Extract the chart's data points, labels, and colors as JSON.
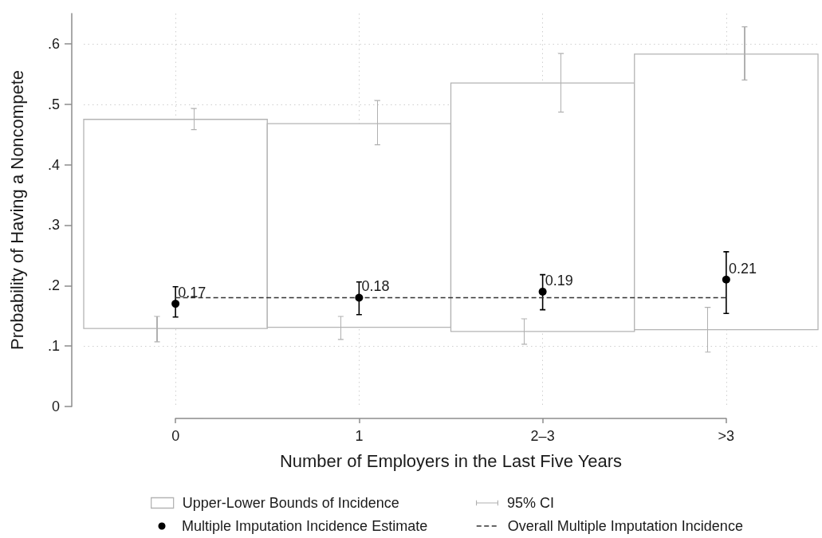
{
  "chart_data": {
    "type": "bar",
    "xlabel": "Number of Employers in the Last Five Years",
    "ylabel": "Probability of Having a Noncompete",
    "categories": [
      "0",
      "1",
      "2–3",
      ">3"
    ],
    "series": [
      {
        "name": "Upper-Lower Bounds of Incidence",
        "color": "#b4b4b4",
        "base": [
          0.129,
          0.131,
          0.124,
          0.127
        ],
        "values": [
          0.346,
          0.337,
          0.411,
          0.456
        ]
      },
      {
        "name": "95% CI",
        "color": "#b0b0b0",
        "x": [
          "0",
          "0",
          "1",
          "1",
          "2–3",
          "2–3",
          ">3",
          ">3"
        ],
        "base": [
          0.107,
          0.458,
          0.111,
          0.433,
          0.103,
          0.487,
          0.09,
          0.54
        ],
        "values": [
          0.042,
          0.035,
          0.038,
          0.073,
          0.042,
          0.097,
          0.074,
          0.088
        ]
      },
      {
        "name": "Multiple Imputation Incidence Estimate",
        "type": "scatter",
        "marker": "circle",
        "color": "#000000",
        "x": [
          "0",
          "1",
          "2–3",
          ">3"
        ],
        "values": [
          0.17,
          0.18,
          0.19,
          0.21
        ],
        "value_labels": [
          "0.17",
          "0.18",
          "0.19",
          "0.21"
        ],
        "errors": [
          [
            0.148,
            0.198
          ],
          [
            0.152,
            0.206
          ],
          [
            0.16,
            0.218
          ],
          [
            0.154,
            0.256
          ]
        ]
      },
      {
        "name": "Overall Multiple Imputation Incidence",
        "type": "line",
        "marker": "none",
        "line_style": "dashed",
        "color": "#333333",
        "values": [
          0.18,
          0.18,
          0.18,
          0.18
        ]
      }
    ],
    "ylim": [
      0,
      0.65
    ],
    "yticks": [
      0,
      {
        "value": 0.1,
        "label": ".1"
      },
      {
        "value": 0.2,
        "label": ".2"
      },
      {
        "value": 0.3,
        "label": ".3"
      },
      {
        "value": 0.4,
        "label": ".4"
      },
      {
        "value": 0.5,
        "label": ".5"
      },
      {
        "value": 0.6,
        "label": ".6"
      }
    ],
    "grid": true,
    "legend": "bottom"
  }
}
